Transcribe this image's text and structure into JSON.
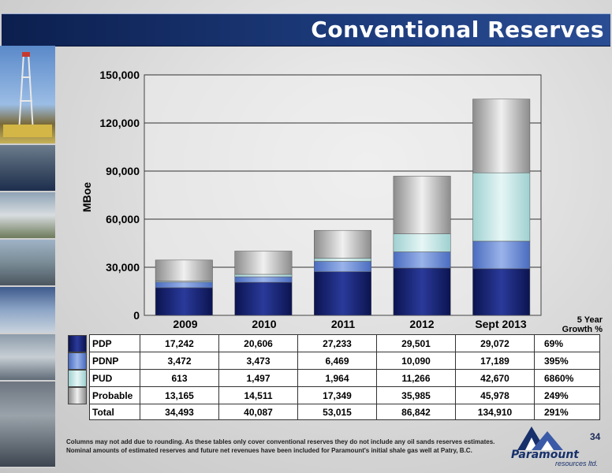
{
  "title": "Conventional Reserves",
  "page_number": "34",
  "footnote": "Columns may not add due to rounding. As these tables only cover conventional reserves they do not include any oil sands reserves estimates. Nominal amounts of estimated reserves and future net revenues have been included for Paramount's initial shale gas well at Patry, B.C.",
  "logo": {
    "name": "Paramount",
    "sub": "resources ltd."
  },
  "growth_header": [
    "5 Year",
    "Growth %"
  ],
  "colors": {
    "PDP": "#131f6e",
    "PDNP": "#6e8fd6",
    "PUD": "#bfe3e3",
    "Probable": "#b9b9b9"
  },
  "chart_data": {
    "type": "bar",
    "stacked": true,
    "categories": [
      "2009",
      "2010",
      "2011",
      "2012",
      "Sept 2013"
    ],
    "ylabel": "MBoe",
    "ylim": [
      0,
      150000
    ],
    "yticks": [
      "0",
      "30,000",
      "60,000",
      "90,000",
      "120,000",
      "150,000"
    ],
    "ytick_values": [
      0,
      30000,
      60000,
      90000,
      120000,
      150000
    ],
    "grid": true,
    "series": [
      {
        "name": "PDP",
        "values": [
          17242,
          20606,
          27233,
          29501,
          29072
        ],
        "labels": [
          "17,242",
          "20,606",
          "27,233",
          "29,501",
          "29,072"
        ],
        "growth": "69%"
      },
      {
        "name": "PDNP",
        "values": [
          3472,
          3473,
          6469,
          10090,
          17189
        ],
        "labels": [
          "3,472",
          "3,473",
          "6,469",
          "10,090",
          "17,189"
        ],
        "growth": "395%"
      },
      {
        "name": "PUD",
        "values": [
          613,
          1497,
          1964,
          11266,
          42670
        ],
        "labels": [
          "613",
          "1,497",
          "1,964",
          "11,266",
          "42,670"
        ],
        "growth": "6860%"
      },
      {
        "name": "Probable",
        "values": [
          13165,
          14511,
          17349,
          35985,
          45978
        ],
        "labels": [
          "13,165",
          "14,511",
          "17,349",
          "35,985",
          "45,978"
        ],
        "growth": "249%"
      }
    ],
    "total": {
      "name": "Total",
      "values": [
        34493,
        40087,
        53015,
        86842,
        134910
      ],
      "labels": [
        "34,493",
        "40,087",
        "53,015",
        "86,842",
        "134,910"
      ],
      "growth": "291%"
    }
  }
}
